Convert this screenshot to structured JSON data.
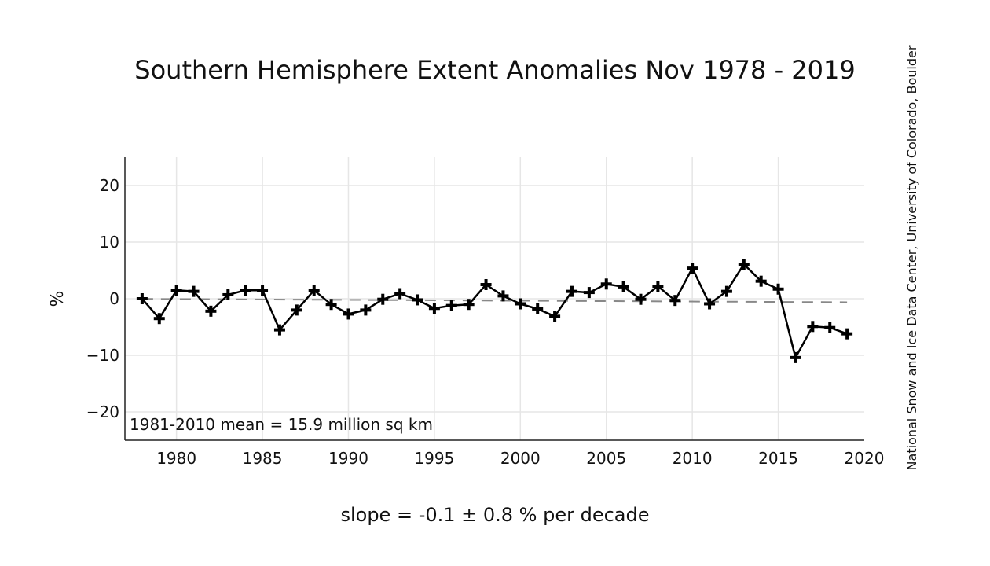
{
  "chart_data": {
    "type": "line",
    "title": "Southern Hemisphere Extent Anomalies Nov 1978 - 2019",
    "ylabel": "%",
    "xlabel": "slope = -0.1 ± 0.8 % per decade",
    "annotation": "1981-2010 mean = 15.9 million sq km",
    "credit": "National Snow and Ice Data Center, University of Colorado, Boulder",
    "xlim": [
      1977,
      2020
    ],
    "ylim": [
      -25,
      25
    ],
    "x_ticks": [
      1980,
      1985,
      1990,
      1995,
      2000,
      2005,
      2010,
      2015,
      2020
    ],
    "x_tick_labels": [
      "1980",
      "1985",
      "1990",
      "1995",
      "2000",
      "2005",
      "2010",
      "2015",
      "2020"
    ],
    "y_ticks": [
      20,
      10,
      0,
      -10,
      -20
    ],
    "y_tick_labels": [
      "20",
      "10",
      "0",
      "−10",
      "−20"
    ],
    "grid": true,
    "series": [
      {
        "x": [
          1978,
          1979,
          1980,
          1981,
          1982,
          1983,
          1984,
          1985,
          1986,
          1987,
          1988,
          1989,
          1990,
          1991,
          1992,
          1993,
          1994,
          1995,
          1996,
          1997,
          1998,
          1999,
          2000,
          2001,
          2002,
          2003,
          2004,
          2005,
          2006,
          2007,
          2008,
          2009,
          2010,
          2011,
          2012,
          2013,
          2014,
          2015,
          2016,
          2017,
          2018,
          2019
        ],
        "values": [
          0.0,
          -3.5,
          1.5,
          1.3,
          -2.2,
          0.7,
          1.5,
          1.5,
          -5.5,
          -2.0,
          1.5,
          -1.0,
          -2.7,
          -2.0,
          -0.1,
          0.9,
          -0.2,
          -1.7,
          -1.2,
          -1.0,
          2.5,
          0.5,
          -0.9,
          -1.8,
          -3.1,
          1.3,
          1.1,
          2.6,
          2.1,
          -0.1,
          2.2,
          -0.3,
          5.4,
          -0.9,
          1.3,
          6.1,
          3.1,
          1.7,
          -10.4,
          -4.9,
          -5.1,
          -6.2
        ]
      },
      {
        "type": "trend",
        "x": [
          1978,
          2019
        ],
        "values": [
          -0.03,
          -0.62
        ]
      }
    ]
  }
}
